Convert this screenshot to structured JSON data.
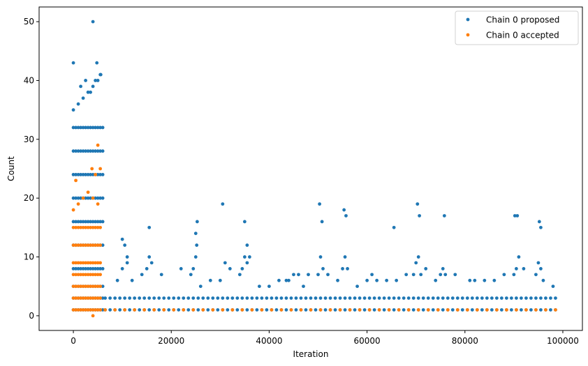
{
  "chart_data": {
    "type": "scatter",
    "xlabel": "Iteration",
    "ylabel": "Count",
    "xlim": [
      -7000,
      104000
    ],
    "ylim": [
      -2.5,
      52.5
    ],
    "xticks": [
      0,
      20000,
      40000,
      60000,
      80000,
      100000
    ],
    "yticks": [
      0,
      10,
      20,
      30,
      40,
      50
    ],
    "grid": false,
    "legend_position": "top-right",
    "series": [
      {
        "name": "Chain 0 proposed",
        "color": "#1f77b4",
        "marker_radius": 2.4,
        "x": [
          0,
          500,
          1000,
          1500,
          2000,
          2500,
          3000,
          3500,
          4000,
          4500,
          5000,
          5500,
          6000,
          0,
          500,
          1000,
          1500,
          2000,
          2500,
          3000,
          3500,
          4000,
          4500,
          5000,
          5500,
          6000,
          0,
          500,
          1000,
          1500,
          2000,
          2500,
          3000,
          3500,
          4000,
          4500,
          5000,
          5500,
          6000,
          0,
          500,
          1000,
          1500,
          2000,
          2500,
          3000,
          3500,
          4000,
          4500,
          5000,
          5500,
          6000,
          0,
          500,
          1000,
          1500,
          2000,
          2500,
          3000,
          3500,
          4000,
          4500,
          5000,
          5500,
          6000,
          0,
          500,
          1000,
          1500,
          2000,
          2500,
          3000,
          3500,
          4000,
          4500,
          5000,
          5500,
          6000,
          0,
          500,
          1000,
          1500,
          2000,
          2500,
          3000,
          3500,
          4000,
          4500,
          5000,
          5500,
          6000,
          0,
          500,
          1000,
          1500,
          2000,
          2500,
          3000,
          3500,
          4000,
          4500,
          5000,
          5500,
          6000,
          0,
          500,
          1000,
          1500,
          2000,
          2500,
          3000,
          3500,
          4000,
          4500,
          5000,
          5500,
          6000,
          0,
          500,
          1000,
          1500,
          2000,
          2500,
          3000,
          3500,
          4000,
          4500,
          5000,
          5500,
          6000,
          0,
          1000,
          2000,
          3000,
          4000,
          5000,
          5500,
          4000,
          4800,
          5600,
          0,
          4500,
          2500,
          3500,
          1500,
          6500,
          7500,
          8500,
          9500,
          10500,
          11500,
          12500,
          13500,
          14500,
          15500,
          16500,
          17500,
          18500,
          19500,
          20500,
          21500,
          22500,
          23500,
          24500,
          25500,
          26500,
          27500,
          28500,
          29500,
          30500,
          31500,
          32500,
          33500,
          34500,
          35500,
          36500,
          37500,
          38500,
          39500,
          40500,
          41500,
          42500,
          43500,
          44500,
          45500,
          46500,
          47500,
          48500,
          49500,
          50500,
          51500,
          52500,
          53500,
          54500,
          55500,
          56500,
          57500,
          58500,
          59500,
          60500,
          61500,
          62500,
          63500,
          64500,
          65500,
          66500,
          67500,
          68500,
          69500,
          70500,
          71500,
          72500,
          73500,
          74500,
          75500,
          76500,
          77500,
          78500,
          79500,
          80500,
          81500,
          82500,
          83500,
          84500,
          85500,
          86500,
          87500,
          88500,
          89500,
          90500,
          91500,
          92500,
          93500,
          94500,
          95500,
          96500,
          97500,
          98500,
          6500,
          7500,
          8500,
          9500,
          10500,
          11500,
          12500,
          13500,
          14500,
          15500,
          16500,
          17500,
          18500,
          19500,
          20500,
          21500,
          22500,
          23500,
          24500,
          25500,
          26500,
          27500,
          28500,
          29500,
          30500,
          31500,
          32500,
          33500,
          34500,
          35500,
          36500,
          37500,
          38500,
          39500,
          40500,
          41500,
          42500,
          43500,
          44500,
          45500,
          46500,
          47500,
          48500,
          49500,
          50500,
          51500,
          52500,
          53500,
          54500,
          55500,
          56500,
          57500,
          58500,
          59500,
          60500,
          61500,
          62500,
          63500,
          64500,
          65500,
          66500,
          67500,
          68500,
          69500,
          70500,
          71500,
          72500,
          73500,
          74500,
          75500,
          76500,
          77500,
          78500,
          79500,
          80500,
          81500,
          82500,
          83500,
          84500,
          85500,
          86500,
          87500,
          88500,
          89500,
          90500,
          91500,
          92500,
          93500,
          94500,
          95500,
          96500,
          97500,
          98500,
          9000,
          10000,
          11000,
          15000,
          15500,
          16000,
          24000,
          24500,
          25000,
          25200,
          30000,
          31000,
          34000,
          34500,
          35000,
          35500,
          40000,
          43500,
          45000,
          47000,
          50000,
          50500,
          51000,
          55000,
          55500,
          56000,
          60000,
          61000,
          66000,
          69500,
          70000,
          70500,
          71000,
          75000,
          75500,
          76000,
          81000,
          86000,
          90000,
          90500,
          91000,
          94500,
          95000,
          95500,
          98000,
          10000,
          10500,
          11000,
          15500,
          25000,
          25300,
          30500,
          35000,
          35500,
          50300,
          50800,
          55300,
          55700,
          65500,
          70300,
          70700,
          75800,
          90200,
          90700,
          95200,
          95500,
          12000,
          14000,
          18000,
          22000,
          26000,
          28000,
          32000,
          36000,
          38000,
          42000,
          44000,
          46000,
          48000,
          52000,
          54000,
          58000,
          62000,
          64000,
          68000,
          72000,
          74000,
          78000,
          82000,
          84000,
          88000,
          92000,
          96000
        ],
        "y": [
          1,
          1,
          1,
          1,
          1,
          1,
          1,
          1,
          1,
          1,
          1,
          1,
          1,
          3,
          3,
          3,
          3,
          3,
          3,
          3,
          3,
          3,
          3,
          3,
          3,
          3,
          5,
          5,
          5,
          5,
          5,
          5,
          5,
          5,
          5,
          5,
          5,
          5,
          5,
          8,
          8,
          8,
          8,
          8,
          8,
          8,
          8,
          8,
          8,
          8,
          8,
          8,
          12,
          12,
          12,
          12,
          12,
          12,
          12,
          12,
          12,
          12,
          12,
          12,
          12,
          16,
          16,
          16,
          16,
          16,
          16,
          16,
          16,
          16,
          16,
          16,
          16,
          16,
          20,
          20,
          20,
          20,
          20,
          20,
          20,
          20,
          20,
          20,
          20,
          20,
          20,
          24,
          24,
          24,
          24,
          24,
          24,
          24,
          24,
          24,
          24,
          24,
          24,
          24,
          28,
          28,
          28,
          28,
          28,
          28,
          28,
          28,
          28,
          28,
          28,
          28,
          28,
          32,
          32,
          32,
          32,
          32,
          32,
          32,
          32,
          32,
          32,
          32,
          32,
          32,
          35,
          36,
          37,
          38,
          39,
          40,
          41,
          50,
          43,
          41,
          43,
          40,
          40,
          38,
          39,
          1,
          1,
          1,
          1,
          1,
          1,
          1,
          1,
          1,
          1,
          1,
          1,
          1,
          1,
          1,
          1,
          1,
          1,
          1,
          1,
          1,
          1,
          1,
          1,
          1,
          1,
          1,
          1,
          1,
          1,
          1,
          1,
          1,
          1,
          1,
          1,
          1,
          1,
          1,
          1,
          1,
          1,
          1,
          1,
          1,
          1,
          1,
          1,
          1,
          1,
          1,
          1,
          1,
          1,
          1,
          1,
          1,
          1,
          1,
          1,
          1,
          1,
          1,
          1,
          1,
          1,
          1,
          1,
          1,
          1,
          1,
          1,
          1,
          1,
          1,
          1,
          1,
          1,
          1,
          1,
          1,
          1,
          1,
          1,
          1,
          1,
          1,
          1,
          1,
          1,
          1,
          1,
          1,
          3,
          3,
          3,
          3,
          3,
          3,
          3,
          3,
          3,
          3,
          3,
          3,
          3,
          3,
          3,
          3,
          3,
          3,
          3,
          3,
          3,
          3,
          3,
          3,
          3,
          3,
          3,
          3,
          3,
          3,
          3,
          3,
          3,
          3,
          3,
          3,
          3,
          3,
          3,
          3,
          3,
          3,
          3,
          3,
          3,
          3,
          3,
          3,
          3,
          3,
          3,
          3,
          3,
          3,
          3,
          3,
          3,
          3,
          3,
          3,
          3,
          3,
          3,
          3,
          3,
          3,
          3,
          3,
          3,
          3,
          3,
          3,
          3,
          3,
          3,
          3,
          3,
          3,
          3,
          3,
          3,
          3,
          3,
          3,
          3,
          3,
          3,
          3,
          3,
          3,
          3,
          3,
          3,
          6,
          8,
          9,
          8,
          10,
          9,
          7,
          8,
          10,
          12,
          6,
          9,
          7,
          8,
          10,
          9,
          5,
          6,
          7,
          5,
          7,
          10,
          8,
          8,
          10,
          8,
          6,
          7,
          6,
          7,
          9,
          10,
          7,
          7,
          8,
          7,
          6,
          6,
          7,
          8,
          10,
          7,
          9,
          8,
          5,
          13,
          12,
          10,
          15,
          14,
          16,
          19,
          16,
          12,
          19,
          16,
          18,
          17,
          15,
          19,
          17,
          17,
          17,
          17,
          16,
          15,
          6,
          7,
          7,
          8,
          5,
          6,
          8,
          10,
          5,
          6,
          6,
          7,
          7,
          7,
          6,
          5,
          6,
          6,
          7,
          8,
          6,
          7,
          6,
          6,
          7,
          8,
          6
        ]
      },
      {
        "name": "Chain 0 accepted",
        "color": "#ff7f0e",
        "marker_radius": 2.4,
        "x": [
          0,
          500,
          1000,
          1500,
          2000,
          2500,
          3000,
          3500,
          4000,
          4500,
          5000,
          5500,
          0,
          500,
          1000,
          1500,
          2000,
          2500,
          3000,
          3500,
          4000,
          4500,
          5000,
          5500,
          0,
          500,
          1000,
          1500,
          2000,
          2500,
          3000,
          3500,
          4000,
          4500,
          5000,
          5500,
          0,
          500,
          1000,
          1500,
          2000,
          2500,
          3000,
          3500,
          4000,
          4500,
          5000,
          5500,
          0,
          500,
          1000,
          1500,
          2000,
          2500,
          3000,
          3500,
          4000,
          4500,
          5000,
          5500,
          0,
          500,
          1000,
          1500,
          2000,
          2500,
          3000,
          3500,
          4000,
          4500,
          5000,
          5500,
          0,
          500,
          1000,
          1500,
          2000,
          2500,
          3000,
          3500,
          4000,
          4500,
          5000,
          5500,
          0,
          1000,
          2000,
          3000,
          4000,
          5000,
          4000,
          5000,
          3800,
          5500,
          4500,
          500,
          6500,
          8500,
          10500,
          12500,
          14500,
          16500,
          18500,
          20500,
          22500,
          24500,
          26500,
          28500,
          30500,
          32500,
          34500,
          36500,
          38500,
          40500,
          42500,
          44500,
          46500,
          48500,
          50500,
          52500,
          54500,
          56500,
          58500,
          60500,
          62500,
          64500,
          66500,
          68500,
          70500,
          72500,
          74500,
          76500,
          78500,
          80500,
          82500,
          84500,
          86500,
          88500,
          90500,
          92500,
          94500,
          96500,
          98500
        ],
        "y": [
          1,
          1,
          1,
          1,
          1,
          1,
          1,
          1,
          1,
          1,
          1,
          1,
          3,
          3,
          3,
          3,
          3,
          3,
          3,
          3,
          3,
          3,
          3,
          3,
          5,
          5,
          5,
          5,
          5,
          5,
          5,
          5,
          5,
          5,
          5,
          5,
          7,
          7,
          7,
          7,
          7,
          7,
          7,
          7,
          7,
          7,
          7,
          7,
          9,
          9,
          9,
          9,
          9,
          9,
          9,
          9,
          9,
          9,
          9,
          9,
          12,
          12,
          12,
          12,
          12,
          12,
          12,
          12,
          12,
          12,
          12,
          12,
          15,
          15,
          15,
          15,
          15,
          15,
          15,
          15,
          15,
          15,
          15,
          15,
          18,
          19,
          20,
          21,
          20,
          19,
          0,
          29,
          25,
          25,
          24,
          23,
          1,
          1,
          1,
          1,
          1,
          1,
          1,
          1,
          1,
          1,
          1,
          1,
          1,
          1,
          1,
          1,
          1,
          1,
          1,
          1,
          1,
          1,
          1,
          1,
          1,
          1,
          1,
          1,
          1,
          1,
          1,
          1,
          1,
          1,
          1,
          1,
          1,
          1,
          1,
          1,
          1,
          1,
          1,
          1,
          1,
          1,
          1
        ]
      }
    ]
  }
}
